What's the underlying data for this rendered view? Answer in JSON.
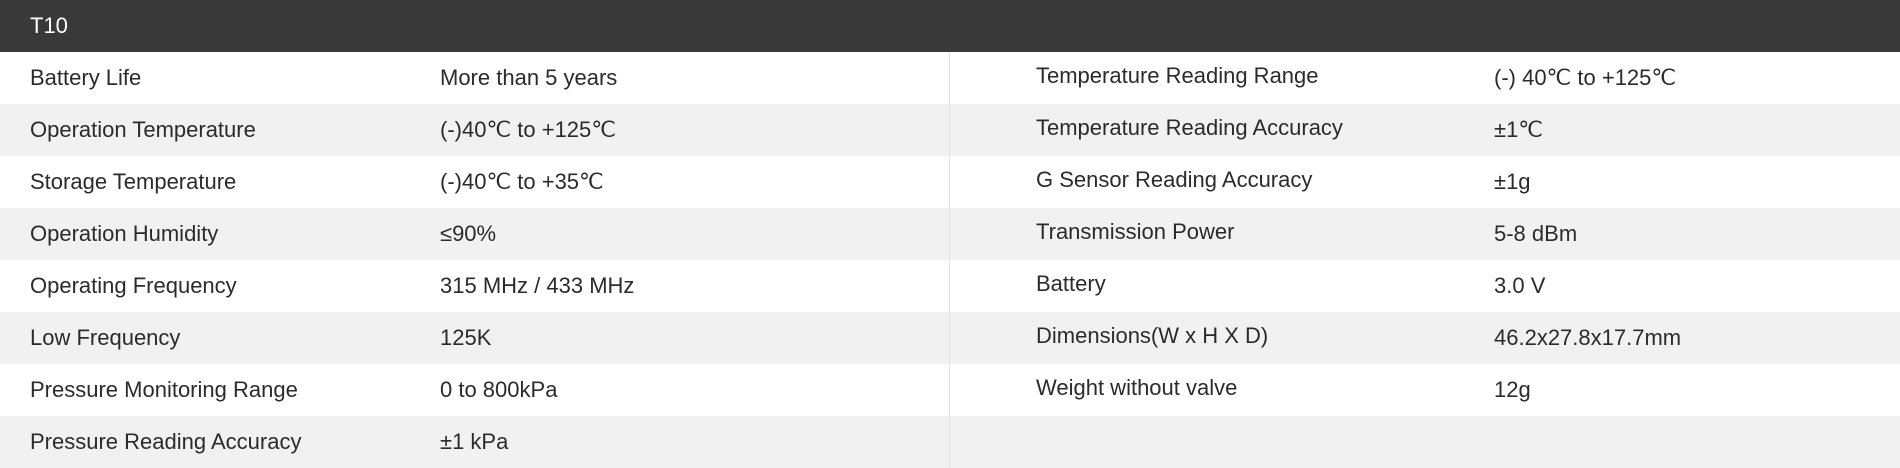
{
  "title": "T10",
  "rows": [
    {
      "left_label": "Battery Life",
      "left_value": "More than 5 years",
      "right_label": "Temperature Reading Range",
      "right_value": "(-) 40℃ to +125℃"
    },
    {
      "left_label": "Operation Temperature",
      "left_value": "(-)40℃ to +125℃",
      "right_label": "Temperature Reading Accuracy",
      "right_value": " ±1℃"
    },
    {
      "left_label": "Storage Temperature",
      "left_value": "(-)40℃ to +35℃",
      "right_label": "G Sensor Reading Accuracy",
      "right_value": "±1g"
    },
    {
      "left_label": "Operation Humidity",
      "left_value": "≤90%",
      "right_label": "Transmission Power",
      "right_value": "5-8 dBm"
    },
    {
      "left_label": "Operating Frequency",
      "left_value": "315 MHz / 433 MHz",
      "right_label": "Battery",
      "right_value": "3.0 V"
    },
    {
      "left_label": "Low Frequency",
      "left_value": "125K",
      "right_label": "Dimensions(W x H X D)",
      "right_value": "46.2x27.8x17.7mm"
    },
    {
      "left_label": "Pressure Monitoring Range",
      "left_value": "0 to 800kPa",
      "right_label": "Weight without valve",
      "right_value": "12g"
    },
    {
      "left_label": "Pressure Reading Accuracy",
      "left_value": "±1 kPa",
      "right_label": "",
      "right_value": ""
    }
  ]
}
